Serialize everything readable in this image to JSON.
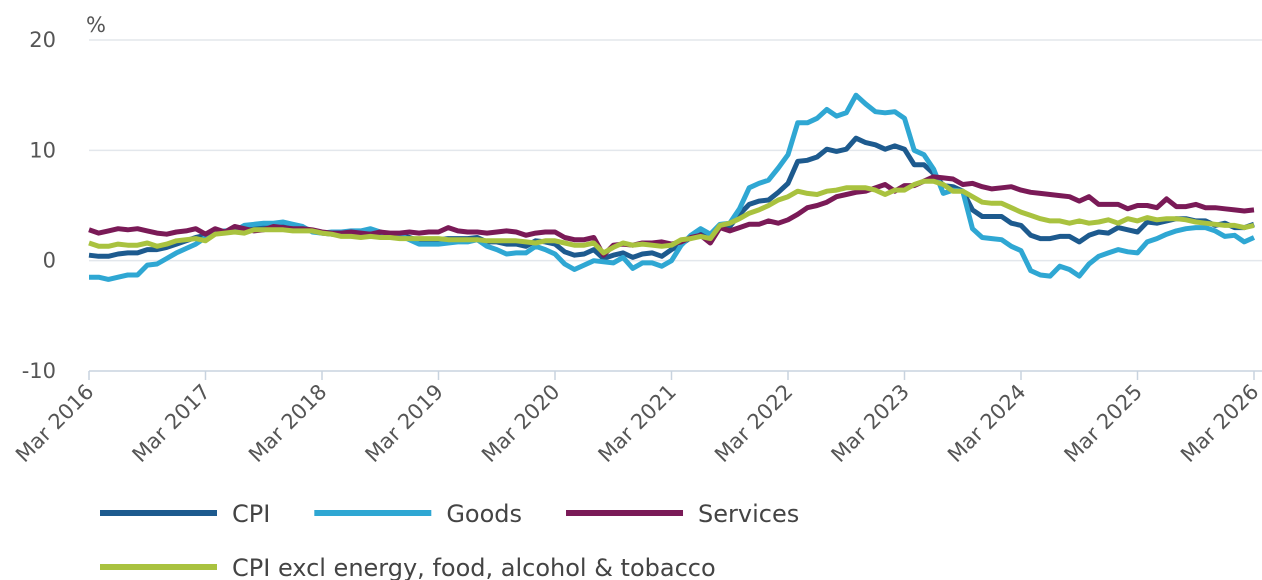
{
  "chart_data": {
    "type": "line",
    "y_unit": "%",
    "categories": [
      "Mar 2016",
      null,
      null,
      null,
      null,
      null,
      null,
      null,
      null,
      null,
      null,
      null,
      "Mar 2017",
      null,
      null,
      null,
      null,
      null,
      null,
      null,
      null,
      null,
      null,
      null,
      "Mar 2018",
      null,
      null,
      null,
      null,
      null,
      null,
      null,
      null,
      null,
      null,
      null,
      "Mar 2019",
      null,
      null,
      null,
      null,
      null,
      null,
      null,
      null,
      null,
      null,
      null,
      "Mar 2020",
      null,
      null,
      null,
      null,
      null,
      null,
      null,
      null,
      null,
      null,
      null,
      "Mar 2021",
      null,
      null,
      null,
      null,
      null,
      null,
      null,
      null,
      null,
      null,
      null,
      "Mar 2022",
      null,
      null,
      null,
      null,
      null,
      null,
      null,
      null,
      null,
      null,
      null,
      "Mar 2023",
      null,
      null,
      null,
      null,
      null,
      null,
      null,
      null,
      null,
      null,
      null,
      "Mar 2024",
      null,
      null,
      null,
      null,
      null,
      null,
      null,
      null,
      null,
      null,
      null,
      "Mar 2025",
      null,
      null,
      null,
      null,
      null,
      null,
      null,
      null,
      null,
      null,
      null,
      "Mar 2026"
    ],
    "series": [
      {
        "name": "CPI",
        "color": "#1d5a8e",
        "values": [
          0.5,
          0.4,
          0.4,
          0.6,
          0.7,
          0.7,
          1.0,
          1.0,
          1.2,
          1.5,
          1.8,
          2.1,
          2.3,
          2.6,
          2.6,
          2.6,
          2.8,
          2.9,
          3.0,
          3.0,
          3.1,
          3.0,
          3.0,
          2.7,
          2.5,
          2.4,
          2.4,
          2.5,
          2.5,
          2.7,
          2.4,
          2.4,
          2.3,
          2.1,
          1.8,
          1.9,
          1.9,
          2.0,
          2.0,
          2.0,
          2.1,
          1.7,
          1.7,
          1.5,
          1.5,
          1.3,
          1.8,
          1.7,
          1.5,
          0.8,
          0.5,
          0.6,
          1.0,
          0.2,
          0.5,
          0.7,
          0.3,
          0.6,
          0.7,
          0.4,
          1.0,
          1.5,
          2.1,
          2.5,
          2.0,
          3.2,
          3.1,
          4.2,
          5.1,
          5.4,
          5.5,
          6.2,
          7.0,
          9.0,
          9.1,
          9.4,
          10.1,
          9.9,
          10.1,
          11.1,
          10.7,
          10.5,
          10.1,
          10.4,
          10.1,
          8.7,
          8.7,
          7.9,
          6.8,
          6.7,
          6.3,
          4.6,
          4.0,
          4.0,
          4.0,
          3.4,
          3.2,
          2.3,
          2.0,
          2.0,
          2.2,
          2.2,
          1.7,
          2.3,
          2.6,
          2.5,
          3.0,
          2.8,
          2.6,
          3.5,
          3.4,
          3.6,
          3.8,
          3.8,
          3.6,
          3.6,
          3.2,
          3.4,
          3.0,
          3.0,
          3.3
        ]
      },
      {
        "name": "Goods",
        "color": "#2fa7d3",
        "values": [
          -1.5,
          -1.5,
          -1.7,
          -1.5,
          -1.3,
          -1.3,
          -0.4,
          -0.3,
          0.2,
          0.7,
          1.1,
          1.5,
          2.1,
          2.6,
          2.7,
          2.7,
          3.2,
          3.3,
          3.4,
          3.4,
          3.5,
          3.3,
          3.1,
          2.6,
          2.5,
          2.6,
          2.6,
          2.7,
          2.7,
          2.9,
          2.6,
          2.4,
          2.3,
          1.9,
          1.5,
          1.5,
          1.5,
          1.6,
          1.7,
          1.7,
          1.9,
          1.3,
          1.0,
          0.6,
          0.7,
          0.7,
          1.3,
          1.0,
          0.6,
          -0.3,
          -0.8,
          -0.4,
          0.0,
          -0.1,
          -0.2,
          0.3,
          -0.7,
          -0.2,
          -0.2,
          -0.5,
          0.0,
          1.4,
          2.3,
          2.9,
          2.4,
          3.3,
          3.4,
          4.7,
          6.6,
          7.0,
          7.3,
          8.4,
          9.6,
          12.5,
          12.5,
          12.9,
          13.7,
          13.1,
          13.4,
          15.0,
          14.2,
          13.5,
          13.4,
          13.5,
          12.9,
          10.0,
          9.6,
          8.3,
          6.1,
          6.4,
          6.3,
          2.9,
          2.1,
          2.0,
          1.9,
          1.3,
          0.9,
          -0.9,
          -1.3,
          -1.4,
          -0.5,
          -0.8,
          -1.4,
          -0.3,
          0.4,
          0.7,
          1.0,
          0.8,
          0.7,
          1.7,
          2.0,
          2.4,
          2.7,
          2.9,
          3.0,
          3.0,
          2.7,
          2.2,
          2.3,
          1.7,
          2.1
        ]
      },
      {
        "name": "Services",
        "color": "#7a1a57",
        "values": [
          2.8,
          2.5,
          2.7,
          2.9,
          2.8,
          2.9,
          2.7,
          2.5,
          2.4,
          2.6,
          2.7,
          2.9,
          2.4,
          2.9,
          2.6,
          3.1,
          2.9,
          2.7,
          2.8,
          3.1,
          3.0,
          2.9,
          2.9,
          2.8,
          2.6,
          2.5,
          2.5,
          2.6,
          2.5,
          2.4,
          2.6,
          2.5,
          2.5,
          2.6,
          2.5,
          2.6,
          2.6,
          3.0,
          2.7,
          2.6,
          2.6,
          2.5,
          2.6,
          2.7,
          2.6,
          2.3,
          2.5,
          2.6,
          2.6,
          2.1,
          1.9,
          1.9,
          2.1,
          0.5,
          1.4,
          1.5,
          1.4,
          1.6,
          1.6,
          1.7,
          1.5,
          1.7,
          2.1,
          2.3,
          1.6,
          3.0,
          2.7,
          3.0,
          3.3,
          3.3,
          3.6,
          3.4,
          3.7,
          4.2,
          4.8,
          5.0,
          5.3,
          5.8,
          6.0,
          6.2,
          6.3,
          6.6,
          6.9,
          6.3,
          6.8,
          6.8,
          7.2,
          7.6,
          7.5,
          7.4,
          6.9,
          7.0,
          6.7,
          6.5,
          6.6,
          6.7,
          6.4,
          6.2,
          6.1,
          6.0,
          5.9,
          5.8,
          5.4,
          5.8,
          5.1,
          5.1,
          5.1,
          4.7,
          5.0,
          5.0,
          4.8,
          5.6,
          4.9,
          4.9,
          5.1,
          4.8,
          4.8,
          4.7,
          4.6,
          4.5,
          4.6
        ]
      },
      {
        "name": "CPI excl energy, food, alcohol & tobacco",
        "color": "#a9c23f",
        "values": [
          1.6,
          1.3,
          1.3,
          1.5,
          1.4,
          1.4,
          1.6,
          1.3,
          1.5,
          1.8,
          1.9,
          2.0,
          1.8,
          2.4,
          2.5,
          2.6,
          2.5,
          2.8,
          2.8,
          2.8,
          2.8,
          2.7,
          2.7,
          2.7,
          2.5,
          2.4,
          2.2,
          2.2,
          2.1,
          2.2,
          2.1,
          2.1,
          2.0,
          2.0,
          2.0,
          2.0,
          2.0,
          1.9,
          1.9,
          1.9,
          1.9,
          1.8,
          1.8,
          1.8,
          1.8,
          1.7,
          1.6,
          1.8,
          1.8,
          1.6,
          1.4,
          1.4,
          1.6,
          0.7,
          1.2,
          1.6,
          1.4,
          1.5,
          1.4,
          1.3,
          1.4,
          1.9,
          2.0,
          2.2,
          2.0,
          3.2,
          3.4,
          3.8,
          4.3,
          4.6,
          5.0,
          5.5,
          5.8,
          6.3,
          6.1,
          6.0,
          6.3,
          6.4,
          6.6,
          6.6,
          6.6,
          6.4,
          6.0,
          6.4,
          6.4,
          6.9,
          7.2,
          7.2,
          6.9,
          6.3,
          6.3,
          5.8,
          5.3,
          5.2,
          5.2,
          4.8,
          4.4,
          4.1,
          3.8,
          3.6,
          3.6,
          3.4,
          3.6,
          3.4,
          3.5,
          3.7,
          3.4,
          3.8,
          3.6,
          3.9,
          3.7,
          3.8,
          3.8,
          3.7,
          3.5,
          3.4,
          3.3,
          3.2,
          3.2,
          3.0,
          3.2
        ]
      }
    ],
    "ylim": [
      -10,
      20
    ],
    "yticks": [
      -10,
      0,
      10,
      20
    ],
    "grid": true
  }
}
